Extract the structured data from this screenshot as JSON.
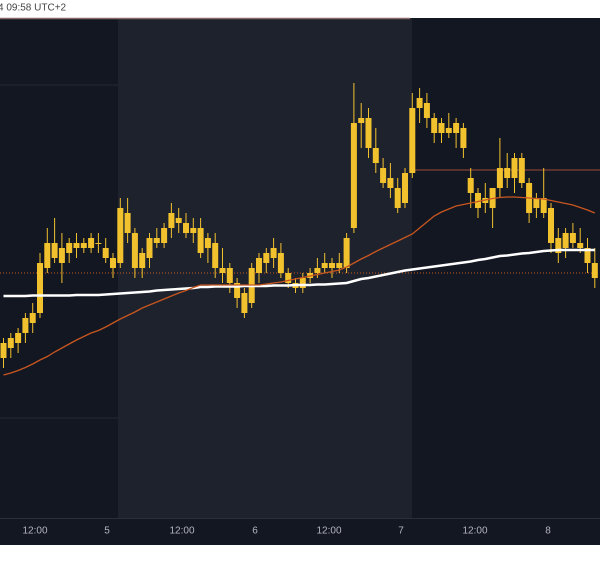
{
  "chart_data": {
    "type": "candlestick",
    "title": "4 09:58 UTC+2",
    "ylim": [
      0,
      100
    ],
    "candle_color": "#f2c12e",
    "xtick_labels": [
      "12:00",
      "5",
      "12:00",
      "6",
      "12:00",
      "7",
      "12:00",
      "8"
    ],
    "candles": [
      [
        32,
        36,
        30,
        35
      ],
      [
        34,
        37,
        32,
        36
      ],
      [
        35,
        38,
        33,
        37
      ],
      [
        37,
        41,
        35,
        40
      ],
      [
        39,
        43,
        37,
        41
      ],
      [
        41,
        53,
        40,
        51
      ],
      [
        50,
        58,
        49,
        55
      ],
      [
        55,
        60,
        51,
        52
      ],
      [
        51,
        57,
        47,
        54
      ],
      [
        53,
        56,
        51,
        55
      ],
      [
        54,
        57,
        52,
        55
      ],
      [
        55,
        56,
        53,
        54
      ],
      [
        54,
        57,
        53,
        56
      ],
      [
        55,
        57,
        53,
        55
      ],
      [
        54,
        56,
        51,
        52
      ],
      [
        52,
        53,
        48,
        50
      ],
      [
        51,
        64,
        50,
        62
      ],
      [
        61,
        64,
        55,
        57
      ],
      [
        57,
        58,
        48,
        50
      ],
      [
        50,
        54,
        48,
        53
      ],
      [
        52,
        57,
        50,
        56
      ],
      [
        56,
        58,
        54,
        55
      ],
      [
        55,
        59,
        54,
        58
      ],
      [
        58,
        63,
        56,
        61
      ],
      [
        60,
        62,
        57,
        59
      ],
      [
        59,
        61,
        56,
        57
      ],
      [
        57,
        60,
        55,
        58
      ],
      [
        58,
        60,
        52,
        53
      ],
      [
        54,
        57,
        51,
        56
      ],
      [
        55,
        57,
        48,
        50
      ],
      [
        50,
        54,
        47,
        49
      ],
      [
        50,
        51,
        45,
        47
      ],
      [
        47,
        48,
        42,
        44
      ],
      [
        45,
        46,
        40,
        41
      ],
      [
        43,
        51,
        42,
        50
      ],
      [
        49,
        53,
        47,
        52
      ],
      [
        51,
        54,
        49,
        53
      ],
      [
        52,
        56,
        50,
        54
      ],
      [
        53,
        55,
        48,
        49
      ],
      [
        49,
        50,
        46,
        47
      ],
      [
        47,
        48,
        45,
        46
      ],
      [
        46,
        49,
        45,
        48
      ],
      [
        48,
        50,
        47,
        49
      ],
      [
        49,
        52,
        48,
        50
      ],
      [
        50,
        53,
        49,
        51
      ],
      [
        50,
        52,
        48,
        51
      ],
      [
        51,
        53,
        49,
        50
      ],
      [
        50,
        57,
        49,
        56
      ],
      [
        58,
        87,
        57,
        79
      ],
      [
        79,
        83,
        74,
        80
      ],
      [
        80,
        82,
        72,
        74
      ],
      [
        74,
        78,
        69,
        71
      ],
      [
        70,
        72,
        66,
        67
      ],
      [
        68,
        71,
        64,
        66
      ],
      [
        66,
        68,
        61,
        62
      ],
      [
        63,
        70,
        62,
        69
      ],
      [
        69,
        85,
        68,
        82
      ],
      [
        82,
        86,
        79,
        84
      ],
      [
        83,
        85,
        78,
        80
      ],
      [
        80,
        81,
        75,
        77
      ],
      [
        77,
        80,
        75,
        79
      ],
      [
        78,
        81,
        76,
        77
      ],
      [
        77,
        80,
        74,
        79
      ],
      [
        78,
        79,
        72,
        74
      ],
      [
        68,
        70,
        62,
        65
      ],
      [
        65,
        66,
        60,
        62
      ],
      [
        64,
        67,
        61,
        63
      ],
      [
        62,
        66,
        58,
        66
      ],
      [
        66,
        76,
        64,
        70
      ],
      [
        70,
        73,
        66,
        68
      ],
      [
        68,
        73,
        65,
        72
      ],
      [
        72,
        73,
        66,
        67
      ],
      [
        67,
        68,
        59,
        61
      ],
      [
        62,
        65,
        60,
        64
      ],
      [
        64,
        70,
        60,
        61
      ],
      [
        62,
        63,
        53,
        55
      ],
      [
        56,
        58,
        51,
        53
      ],
      [
        54,
        58,
        52,
        57
      ],
      [
        57,
        59,
        54,
        55
      ],
      [
        55,
        58,
        53,
        54
      ],
      [
        54,
        56,
        49,
        51
      ],
      [
        51,
        54,
        46,
        48
      ]
    ],
    "series": [
      {
        "color": "#ffffff",
        "width": 2.5,
        "values": [
          44.4,
          44.4,
          44.4,
          44.4,
          44.5,
          44.5,
          44.5,
          44.5,
          44.5,
          44.5,
          44.6,
          44.6,
          44.6,
          44.6,
          44.7,
          44.8,
          44.9,
          45.0,
          45.1,
          45.2,
          45.3,
          45.5,
          45.6,
          45.7,
          45.8,
          45.9,
          46.0,
          46.2,
          46.2,
          46.3,
          46.3,
          46.3,
          46.3,
          46.4,
          46.4,
          46.4,
          46.4,
          46.5,
          46.5,
          46.5,
          46.6,
          46.6,
          46.6,
          46.7,
          46.7,
          46.8,
          46.9,
          47.0,
          47.4,
          47.8,
          48.0,
          48.3,
          48.6,
          48.9,
          49.2,
          49.5,
          49.7,
          49.9,
          50.1,
          50.3,
          50.5,
          50.7,
          50.9,
          51.1,
          51.3,
          51.6,
          51.8,
          52.1,
          52.4,
          52.5,
          52.7,
          52.9,
          53.0,
          53.2,
          53.4,
          53.5,
          53.6,
          53.6,
          53.6,
          53.6,
          53.6,
          53.6
        ]
      },
      {
        "color": "#c8561f",
        "width": 1.3,
        "values": [
          28.6,
          29.0,
          29.5,
          30.1,
          30.8,
          31.6,
          32.3,
          33.2,
          34.0,
          34.8,
          35.6,
          36.3,
          37.0,
          37.5,
          38.2,
          39.0,
          39.8,
          40.5,
          41.2,
          42.0,
          42.6,
          43.2,
          43.8,
          44.4,
          45.0,
          45.5,
          46.1,
          46.6,
          46.6,
          46.6,
          46.6,
          46.6,
          46.6,
          46.6,
          46.6,
          46.6,
          46.8,
          47.0,
          47.2,
          47.5,
          47.8,
          48.1,
          48.4,
          48.7,
          49.0,
          49.3,
          49.6,
          50.2,
          51.0,
          51.8,
          52.5,
          53.3,
          54.0,
          54.7,
          55.4,
          56.1,
          56.8,
          58.0,
          59.2,
          60.4,
          61.2,
          61.8,
          62.4,
          62.7,
          63.0,
          63.3,
          63.6,
          63.9,
          64.1,
          64.2,
          64.2,
          64.1,
          64.0,
          63.9,
          63.8,
          63.5,
          63.2,
          62.9,
          62.6,
          62.1,
          61.6,
          61.0
        ]
      }
    ],
    "reference_lines": [
      {
        "value": 49,
        "style": "dotted",
        "color": "#c8561f"
      },
      {
        "value": 69.6,
        "style": "solid",
        "color": "#9c4a3a"
      }
    ]
  }
}
